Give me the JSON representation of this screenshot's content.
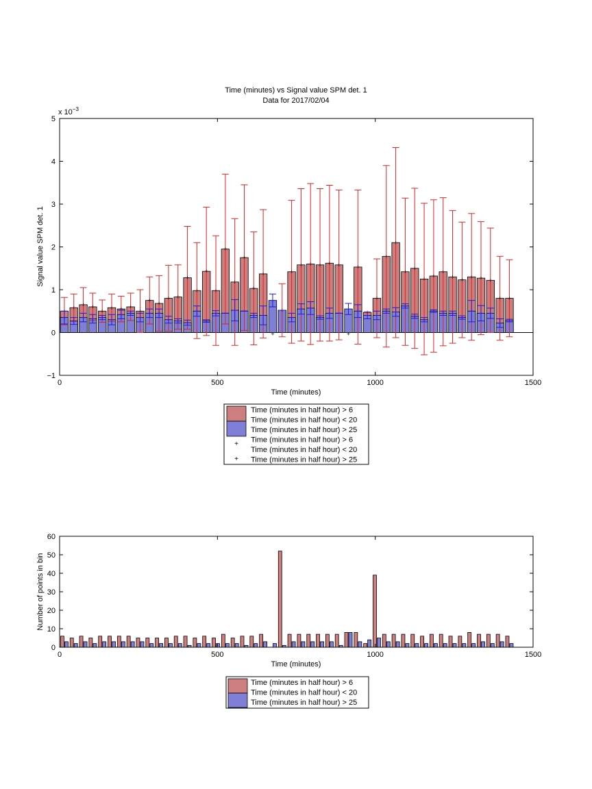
{
  "colors": {
    "red_fill": "#cd7f7f",
    "red_line": "#dd2222",
    "blue_fill": "#7f7fd8",
    "blue_line": "#1a1ae0",
    "edge": "#000000"
  },
  "chart_data": [
    {
      "type": "bar",
      "title": "Time (minutes) vs Signal value SPM det. 1",
      "subtitle": "Data for 2017/02/04",
      "xlabel": "Time (minutes)",
      "ylabel": "Signal value SPM det. 1",
      "y_exponent_label": "x 10",
      "y_exponent_power": "−3",
      "xlim": [
        0,
        1500
      ],
      "ylim": [
        -1,
        5
      ],
      "y_scale_factor": 0.001,
      "xticks": [
        "0",
        "500",
        "1000",
        "1500"
      ],
      "yticks": [
        "−1",
        "0",
        "1",
        "2",
        "3",
        "4",
        "5"
      ],
      "grid": false,
      "legend": {
        "position": "below-axes",
        "entries": [
          "Time (minutes in half hour) > 6",
          "Time (minutes in half hour) < 20",
          "Time (minutes in half hour) > 25",
          "Time (minutes in half hour) > 6",
          "Time (minutes in half hour) < 20",
          "Time (minutes in half hour) > 25"
        ]
      },
      "x": [
        15,
        45,
        75,
        105,
        135,
        165,
        195,
        225,
        255,
        285,
        315,
        345,
        375,
        405,
        435,
        465,
        495,
        525,
        555,
        585,
        615,
        645,
        675,
        705,
        735,
        765,
        795,
        825,
        855,
        885,
        915,
        945,
        975,
        1005,
        1035,
        1065,
        1095,
        1125,
        1155,
        1185,
        1215,
        1245,
        1275,
        1305,
        1335,
        1365,
        1395,
        1425
      ],
      "series": [
        {
          "name": "Time (minutes in half hour) > 6",
          "values": [
            0.5,
            0.58,
            0.65,
            0.6,
            0.5,
            0.58,
            0.55,
            0.6,
            0.5,
            0.75,
            0.68,
            0.8,
            0.83,
            1.28,
            0.98,
            1.43,
            0.98,
            1.95,
            1.18,
            1.75,
            1.03,
            1.37,
            null,
            0.52,
            1.42,
            1.58,
            1.6,
            1.58,
            1.62,
            1.58,
            null,
            1.53,
            0.47,
            0.8,
            1.78,
            2.1,
            1.42,
            1.5,
            1.25,
            1.32,
            1.42,
            1.3,
            1.23,
            1.3,
            1.27,
            1.22,
            0.8,
            0.8
          ],
          "error": [
            0.32,
            0.32,
            0.4,
            0.32,
            0.26,
            0.32,
            0.3,
            0.32,
            0.5,
            0.55,
            0.65,
            0.77,
            0.75,
            1.2,
            1.12,
            1.5,
            1.28,
            1.75,
            1.48,
            1.7,
            1.32,
            1.5,
            null,
            0.62,
            1.67,
            1.78,
            1.88,
            1.78,
            1.82,
            1.75,
            null,
            1.8,
            0.0,
            0.92,
            2.12,
            2.22,
            1.72,
            1.87,
            1.77,
            1.78,
            1.73,
            1.55,
            1.35,
            1.48,
            1.32,
            1.22,
            0.98,
            0.9
          ]
        },
        {
          "name": "Time (minutes in half hour) > 25",
          "values": [
            0.35,
            0.27,
            0.35,
            0.32,
            0.35,
            0.3,
            0.42,
            0.45,
            0.35,
            0.45,
            0.45,
            0.3,
            0.27,
            0.23,
            0.5,
            0.27,
            0.45,
            0.45,
            0.52,
            0.5,
            0.4,
            0.4,
            0.75,
            0.52,
            0.35,
            0.55,
            0.57,
            0.35,
            0.45,
            0.45,
            0.55,
            0.5,
            0.4,
            0.4,
            0.5,
            0.48,
            0.62,
            0.38,
            0.3,
            0.5,
            0.45,
            0.45,
            0.35,
            0.5,
            0.45,
            0.45,
            0.22,
            0.28
          ],
          "error": [
            0.15,
            0.08,
            0.1,
            0.1,
            0.05,
            0.12,
            0.1,
            0.05,
            0.1,
            0.1,
            0.1,
            0.08,
            0.05,
            0.06,
            0.12,
            0.03,
            0.06,
            0.0,
            0.25,
            0.0,
            0.05,
            0.22,
            0.15,
            0.0,
            0.1,
            0.12,
            0.15,
            0.04,
            0.12,
            0.0,
            0.13,
            0.15,
            0.08,
            0.1,
            0.05,
            0.1,
            0.05,
            0.05,
            0.05,
            0.03,
            0.05,
            0.05,
            0.04,
            0.25,
            0.18,
            0.12,
            0.1,
            0.03
          ]
        }
      ],
      "cross_markers": [
        {
          "x": 675,
          "value": -0.03,
          "series": "Time (minutes in half hour) > 6"
        },
        {
          "x": 915,
          "value": -0.03,
          "series": "Time (minutes in half hour) > 6"
        }
      ]
    },
    {
      "type": "bar",
      "xlabel": "Time (minutes)",
      "ylabel": "Number of points in bin",
      "xlim": [
        0,
        1500
      ],
      "ylim": [
        0,
        60
      ],
      "xticks": [
        "0",
        "500",
        "1000",
        "1500"
      ],
      "yticks": [
        "0",
        "10",
        "20",
        "30",
        "40",
        "50",
        "60"
      ],
      "grid": false,
      "legend": {
        "position": "below-axes",
        "entries": [
          "Time (minutes in half hour) > 6",
          "Time (minutes in half hour) < 20",
          "Time (minutes in half hour) > 25"
        ]
      },
      "x": [
        15,
        45,
        75,
        105,
        135,
        165,
        195,
        225,
        255,
        285,
        315,
        345,
        375,
        405,
        435,
        465,
        495,
        525,
        555,
        585,
        615,
        645,
        675,
        705,
        735,
        765,
        795,
        825,
        855,
        885,
        915,
        945,
        975,
        1005,
        1035,
        1065,
        1095,
        1125,
        1155,
        1185,
        1215,
        1245,
        1275,
        1305,
        1335,
        1365,
        1395,
        1425
      ],
      "series": [
        {
          "name": "Time (minutes in half hour) > 6",
          "values": [
            6,
            5,
            6,
            5,
            6,
            6,
            6,
            6,
            5,
            5,
            5,
            5,
            6,
            6,
            5,
            6,
            5,
            7,
            5,
            6,
            6,
            7,
            0,
            52,
            7,
            7,
            7,
            7,
            7,
            7,
            8,
            8,
            2,
            39,
            7,
            7,
            7,
            7,
            6,
            7,
            7,
            6,
            6,
            8,
            7,
            7,
            7,
            6
          ]
        },
        {
          "name": "Time (minutes in half hour) > 25",
          "values": [
            3,
            2,
            3,
            2,
            3,
            3,
            3,
            3,
            3,
            2,
            2,
            2,
            2,
            1,
            2,
            2,
            2,
            2,
            2,
            1,
            2,
            3,
            2,
            1,
            3,
            3,
            3,
            3,
            3,
            1,
            8,
            3,
            4,
            5,
            3,
            3,
            2,
            2,
            2,
            2,
            2,
            2,
            2,
            2,
            3,
            2,
            3,
            2
          ]
        }
      ]
    }
  ]
}
